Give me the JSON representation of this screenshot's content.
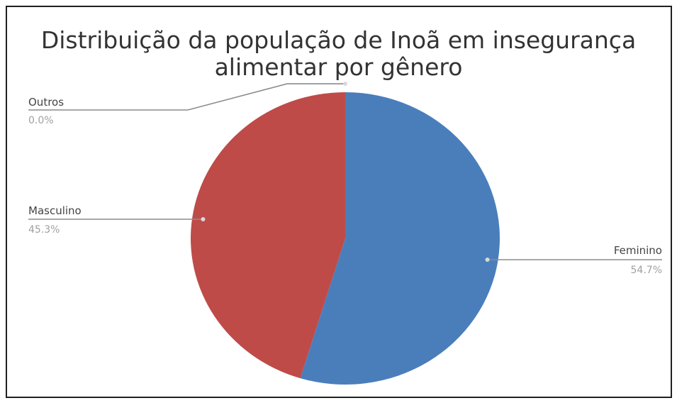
{
  "chart_data": {
    "type": "pie",
    "title_lines": [
      "Distribuição da população de Inoã em insegurança",
      "alimentar por gênero"
    ],
    "slices": [
      {
        "label": "Feminino",
        "value": 54.7,
        "value_label": "54.7%",
        "color": "#4a7ebb"
      },
      {
        "label": "Masculino",
        "value": 45.3,
        "value_label": "45.3%",
        "color": "#be4b48"
      },
      {
        "label": "Outros",
        "value": 0.0,
        "value_label": "0.0%",
        "color": "#98b954"
      }
    ],
    "label_color": "#444444",
    "value_color": "#a0a0a0",
    "leader_color": "#8c8c8c"
  }
}
